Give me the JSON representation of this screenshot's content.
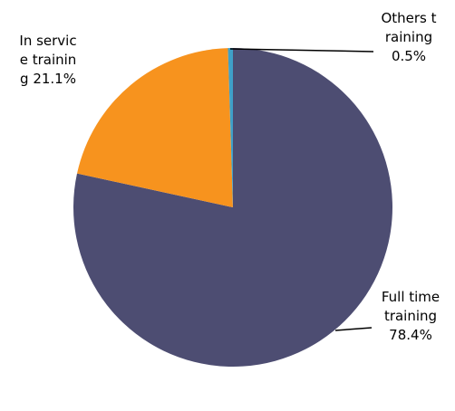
{
  "chart_data": {
    "type": "pie",
    "categories": [
      "Full time training",
      "In service training",
      "Others training"
    ],
    "values": [
      78.4,
      21.1,
      0.5
    ],
    "value_labels": [
      "78.4%",
      "21.1%",
      "0.5%"
    ],
    "colors": [
      "#4d4d72",
      "#f7931e",
      "#3fa0c8"
    ]
  }
}
